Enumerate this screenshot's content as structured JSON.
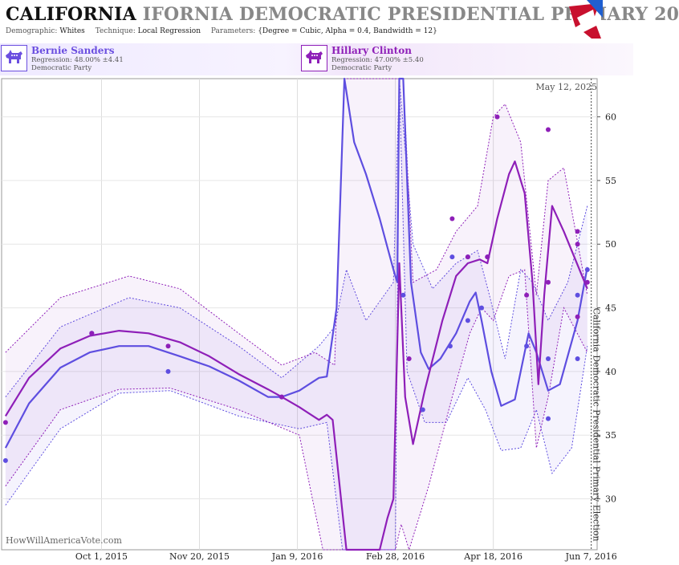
{
  "header": {
    "title_dark": "CALIFORNIA",
    "title_light": "IFORNIA DEMOCRATIC PRESIDENTIAL PRIMARY 20",
    "demographic_label": "Demographic:",
    "demographic_value": "Whites",
    "technique_label": "Technique:",
    "technique_value": "Local Regression",
    "parameters_label": "Parameters:",
    "parameters_value": "{Degree = Cubic, Alpha = 0.4, Bandwidth = 12}"
  },
  "candidates": [
    {
      "name": "Bernie Sanders",
      "regression": "Regression: 48.00% ±4.41",
      "party": "Democratic Party",
      "color": "#6b4fe0"
    },
    {
      "name": "Hillary Clinton",
      "regression": "Regression: 47.00% ±5.40",
      "party": "Democratic Party",
      "color": "#8e1fb8"
    }
  ],
  "watermark": "HowWillAmericaVote.com",
  "chart_data": {
    "type": "line",
    "date_label": "May 12, 2025",
    "election_label": "California Democratic Presidential Primary Election",
    "election_date": "2016-06-07",
    "xlim": [
      "2015-08-11",
      "2016-06-10"
    ],
    "ylim": [
      26,
      63
    ],
    "x_ticks": [
      "Oct 1, 2015",
      "Nov 20, 2015",
      "Jan 9, 2016",
      "Feb 28, 2016",
      "Apr 18, 2016",
      "Jun 7, 2016"
    ],
    "x_tick_dates": [
      "2015-10-01",
      "2015-11-20",
      "2016-01-09",
      "2016-02-28",
      "2016-04-18",
      "2016-06-07"
    ],
    "y_ticks": [
      30,
      35,
      40,
      45,
      50,
      55,
      60
    ],
    "series": [
      {
        "name": "Bernie Sanders",
        "color": "#5e4ee0",
        "points": [
          [
            "2015-08-13",
            33
          ],
          [
            "2015-09-26",
            43
          ],
          [
            "2015-11-04",
            40
          ],
          [
            "2016-01-01",
            38
          ],
          [
            "2016-03-03",
            46
          ],
          [
            "2016-03-13",
            37
          ],
          [
            "2016-03-27",
            42
          ],
          [
            "2016-03-28",
            49
          ],
          [
            "2016-04-05",
            49
          ],
          [
            "2016-04-05",
            44
          ],
          [
            "2016-04-12",
            45
          ],
          [
            "2016-04-15",
            49
          ],
          [
            "2016-05-05",
            42
          ],
          [
            "2016-05-16",
            41
          ],
          [
            "2016-05-16",
            36.3
          ],
          [
            "2016-05-31",
            46
          ],
          [
            "2016-05-31",
            41
          ],
          [
            "2016-06-05",
            48
          ]
        ],
        "trend": [
          [
            "2015-08-13",
            34
          ],
          [
            "2015-08-25",
            37.5
          ],
          [
            "2015-09-10",
            40.3
          ],
          [
            "2015-09-25",
            41.5
          ],
          [
            "2015-10-10",
            42.0
          ],
          [
            "2015-10-25",
            42.0
          ],
          [
            "2015-11-10",
            41.2
          ],
          [
            "2015-11-25",
            40.4
          ],
          [
            "2015-12-10",
            39.3
          ],
          [
            "2015-12-25",
            38.0
          ],
          [
            "2016-01-01",
            38.0
          ],
          [
            "2016-01-10",
            38.5
          ],
          [
            "2016-01-20",
            39.5
          ],
          [
            "2016-01-24",
            39.6
          ],
          [
            "2016-01-29",
            45
          ],
          [
            "2016-02-02",
            63
          ],
          [
            "2016-02-07",
            58
          ],
          [
            "2016-02-13",
            55.5
          ],
          [
            "2016-02-20",
            52
          ],
          [
            "2016-02-27",
            48
          ],
          [
            "2016-02-29",
            47
          ],
          [
            "2016-03-01",
            63
          ],
          [
            "2016-03-03",
            63
          ],
          [
            "2016-03-07",
            47
          ],
          [
            "2016-03-12",
            41.5
          ],
          [
            "2016-03-16",
            40.2
          ],
          [
            "2016-03-22",
            41
          ],
          [
            "2016-03-30",
            43
          ],
          [
            "2016-04-06",
            45.5
          ],
          [
            "2016-04-09",
            46.2
          ],
          [
            "2016-04-12",
            44
          ],
          [
            "2016-04-17",
            40
          ],
          [
            "2016-04-22",
            37.3
          ],
          [
            "2016-04-29",
            37.8
          ],
          [
            "2016-05-06",
            43
          ],
          [
            "2016-05-10",
            41.5
          ],
          [
            "2016-05-16",
            38.5
          ],
          [
            "2016-05-22",
            39
          ],
          [
            "2016-05-31",
            44
          ],
          [
            "2016-06-05",
            48.2
          ]
        ],
        "band_upper": [
          [
            "2015-08-13",
            38
          ],
          [
            "2015-09-10",
            43.5
          ],
          [
            "2015-10-15",
            45.8
          ],
          [
            "2015-11-10",
            45
          ],
          [
            "2015-12-10",
            42
          ],
          [
            "2016-01-01",
            39.5
          ],
          [
            "2016-01-20",
            42
          ],
          [
            "2016-01-28",
            43.5
          ],
          [
            "2016-02-03",
            48
          ],
          [
            "2016-02-13",
            44
          ],
          [
            "2016-02-27",
            47
          ],
          [
            "2016-03-01",
            63
          ],
          [
            "2016-03-08",
            50
          ],
          [
            "2016-03-18",
            46.5
          ],
          [
            "2016-03-30",
            48.5
          ],
          [
            "2016-04-10",
            49.5
          ],
          [
            "2016-04-16",
            46
          ],
          [
            "2016-04-24",
            41
          ],
          [
            "2016-05-02",
            48
          ],
          [
            "2016-05-08",
            47
          ],
          [
            "2016-05-16",
            44
          ],
          [
            "2016-05-26",
            47
          ],
          [
            "2016-06-05",
            53
          ]
        ],
        "band_lower": [
          [
            "2015-08-13",
            29.5
          ],
          [
            "2015-09-10",
            35.5
          ],
          [
            "2015-10-10",
            38.3
          ],
          [
            "2015-11-05",
            38.5
          ],
          [
            "2015-12-10",
            36.5
          ],
          [
            "2016-01-10",
            35.5
          ],
          [
            "2016-01-24",
            36
          ],
          [
            "2016-02-01",
            26
          ],
          [
            "2016-02-20",
            26
          ],
          [
            "2016-02-28",
            26
          ],
          [
            "2016-03-01",
            63
          ],
          [
            "2016-03-05",
            40
          ],
          [
            "2016-03-14",
            36
          ],
          [
            "2016-03-25",
            36
          ],
          [
            "2016-04-05",
            39.5
          ],
          [
            "2016-04-14",
            37
          ],
          [
            "2016-04-22",
            33.8
          ],
          [
            "2016-05-02",
            34
          ],
          [
            "2016-05-10",
            37
          ],
          [
            "2016-05-18",
            32
          ],
          [
            "2016-05-28",
            34
          ],
          [
            "2016-06-05",
            42
          ]
        ]
      },
      {
        "name": "Hillary Clinton",
        "color": "#8e1fb8",
        "points": [
          [
            "2015-08-13",
            36
          ],
          [
            "2015-09-26",
            43
          ],
          [
            "2015-11-04",
            42
          ],
          [
            "2016-01-01",
            38
          ],
          [
            "2016-03-06",
            41
          ],
          [
            "2016-03-28",
            52
          ],
          [
            "2016-04-05",
            49
          ],
          [
            "2016-04-15",
            49
          ],
          [
            "2016-04-20",
            60
          ],
          [
            "2016-05-05",
            46
          ],
          [
            "2016-05-16",
            59
          ],
          [
            "2016-05-16",
            47
          ],
          [
            "2016-05-31",
            50
          ],
          [
            "2016-05-31",
            51
          ],
          [
            "2016-05-31",
            44.3
          ],
          [
            "2016-06-05",
            47
          ]
        ],
        "trend": [
          [
            "2015-08-13",
            36.5
          ],
          [
            "2015-08-25",
            39.5
          ],
          [
            "2015-09-10",
            41.8
          ],
          [
            "2015-09-25",
            42.8
          ],
          [
            "2015-10-10",
            43.2
          ],
          [
            "2015-10-25",
            43.0
          ],
          [
            "2015-11-10",
            42.3
          ],
          [
            "2015-11-25",
            41.2
          ],
          [
            "2015-12-10",
            39.8
          ],
          [
            "2015-12-25",
            38.6
          ],
          [
            "2016-01-01",
            38.0
          ],
          [
            "2016-01-10",
            37.2
          ],
          [
            "2016-01-20",
            36.2
          ],
          [
            "2016-01-24",
            36.6
          ],
          [
            "2016-01-27",
            36.2
          ],
          [
            "2016-02-03",
            26
          ],
          [
            "2016-02-10",
            26
          ],
          [
            "2016-02-20",
            26
          ],
          [
            "2016-02-24",
            28.5
          ],
          [
            "2016-02-27",
            30
          ],
          [
            "2016-03-01",
            48.5
          ],
          [
            "2016-03-04",
            38
          ],
          [
            "2016-03-08",
            34.3
          ],
          [
            "2016-03-14",
            38.5
          ],
          [
            "2016-03-23",
            44
          ],
          [
            "2016-03-30",
            47.5
          ],
          [
            "2016-04-05",
            48.5
          ],
          [
            "2016-04-11",
            48.8
          ],
          [
            "2016-04-15",
            48.5
          ],
          [
            "2016-04-20",
            52
          ],
          [
            "2016-04-26",
            55.5
          ],
          [
            "2016-04-29",
            56.5
          ],
          [
            "2016-05-04",
            54
          ],
          [
            "2016-05-08",
            47
          ],
          [
            "2016-05-11",
            39
          ],
          [
            "2016-05-14",
            46
          ],
          [
            "2016-05-18",
            53
          ],
          [
            "2016-05-24",
            51
          ],
          [
            "2016-06-05",
            46.5
          ]
        ],
        "band_upper": [
          [
            "2015-08-13",
            41.5
          ],
          [
            "2015-09-10",
            45.8
          ],
          [
            "2015-10-15",
            47.5
          ],
          [
            "2015-11-10",
            46.5
          ],
          [
            "2015-12-10",
            43
          ],
          [
            "2016-01-01",
            40.5
          ],
          [
            "2016-01-18",
            41.5
          ],
          [
            "2016-01-28",
            40.5
          ],
          [
            "2016-02-02",
            63
          ],
          [
            "2016-02-14",
            63
          ],
          [
            "2016-02-22",
            63
          ],
          [
            "2016-03-03",
            63
          ],
          [
            "2016-03-08",
            47
          ],
          [
            "2016-03-20",
            48
          ],
          [
            "2016-03-30",
            51
          ],
          [
            "2016-04-10",
            53
          ],
          [
            "2016-04-18",
            60
          ],
          [
            "2016-04-24",
            61
          ],
          [
            "2016-05-02",
            58
          ],
          [
            "2016-05-10",
            46
          ],
          [
            "2016-05-16",
            55
          ],
          [
            "2016-05-24",
            56
          ],
          [
            "2016-06-05",
            46
          ]
        ],
        "band_lower": [
          [
            "2015-08-13",
            31
          ],
          [
            "2015-09-10",
            37
          ],
          [
            "2015-10-10",
            38.6
          ],
          [
            "2015-11-05",
            38.7
          ],
          [
            "2015-12-10",
            37
          ],
          [
            "2016-01-10",
            35
          ],
          [
            "2016-01-22",
            26
          ],
          [
            "2016-02-20",
            26
          ],
          [
            "2016-02-28",
            26
          ],
          [
            "2016-03-02",
            28
          ],
          [
            "2016-03-06",
            26
          ],
          [
            "2016-03-16",
            31
          ],
          [
            "2016-03-28",
            38
          ],
          [
            "2016-04-06",
            43
          ],
          [
            "2016-04-12",
            45
          ],
          [
            "2016-04-18",
            44
          ],
          [
            "2016-04-26",
            47.5
          ],
          [
            "2016-05-04",
            48
          ],
          [
            "2016-05-10",
            34
          ],
          [
            "2016-05-16",
            38
          ],
          [
            "2016-05-24",
            45
          ],
          [
            "2016-06-05",
            41.5
          ]
        ]
      }
    ]
  }
}
